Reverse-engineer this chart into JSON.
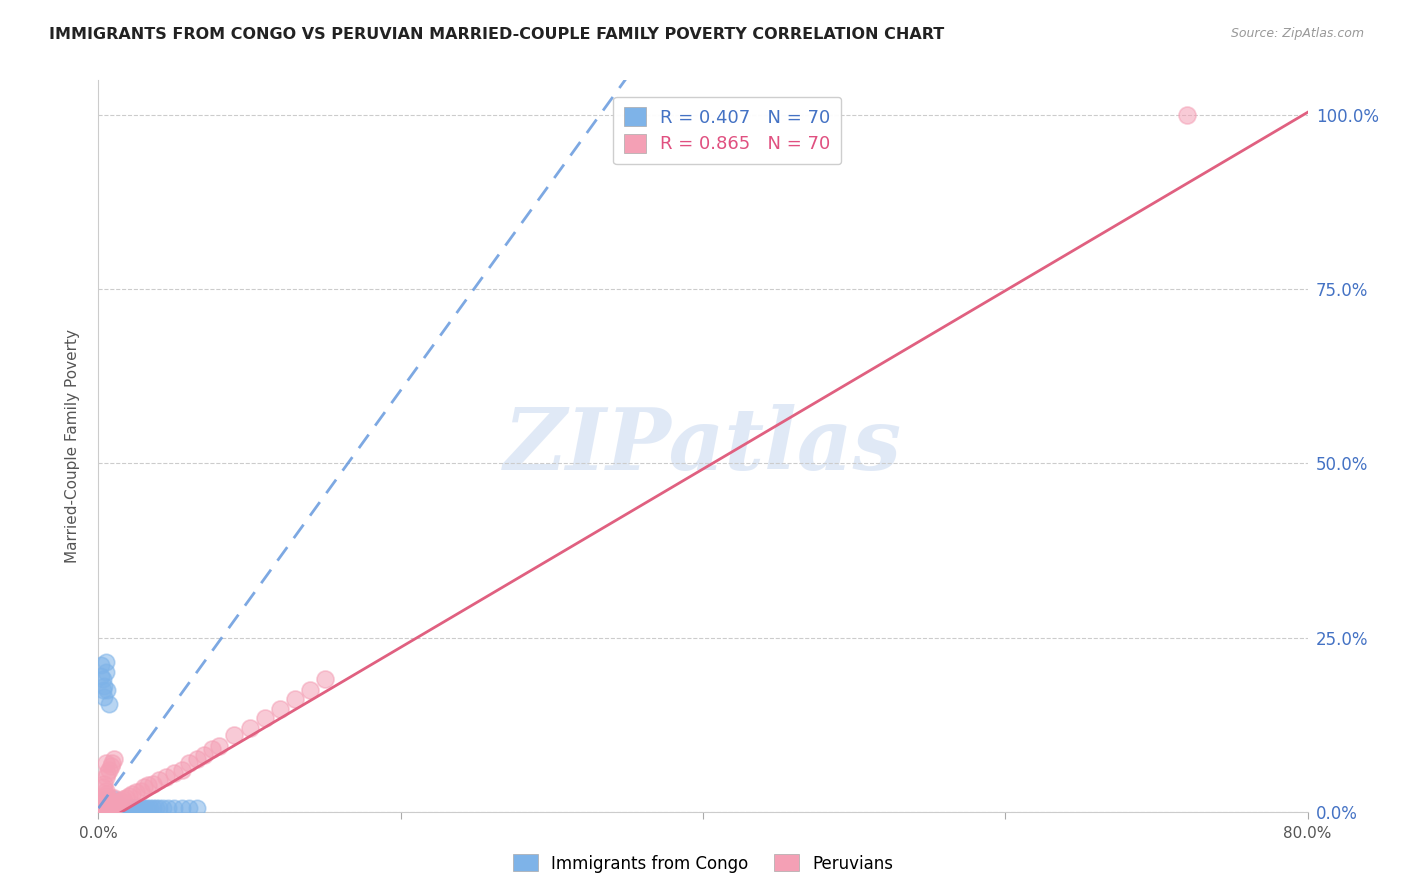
{
  "title": "IMMIGRANTS FROM CONGO VS PERUVIAN MARRIED-COUPLE FAMILY POVERTY CORRELATION CHART",
  "source": "Source: ZipAtlas.com",
  "ylabel": "Married-Couple Family Poverty",
  "xlim": [
    0,
    0.8
  ],
  "ylim": [
    0,
    1.05
  ],
  "xticks": [
    0.0,
    0.2,
    0.4,
    0.6,
    0.8
  ],
  "xtick_labels": [
    "0.0%",
    "",
    "",
    "",
    "80.0%"
  ],
  "ytick_labels": [
    "0.0%",
    "25.0%",
    "50.0%",
    "75.0%",
    "100.0%"
  ],
  "yticks": [
    0.0,
    0.25,
    0.5,
    0.75,
    1.0
  ],
  "legend1_label": "R = 0.407   N = 70",
  "legend2_label": "R = 0.865   N = 70",
  "legend_label1": "Immigrants from Congo",
  "legend_label2": "Peruvians",
  "blue_color": "#7EB3E8",
  "pink_color": "#F4A0B5",
  "blue_line_color": "#6699DD",
  "pink_line_color": "#E06080",
  "blue_line_slope": 3.0,
  "blue_line_intercept": 0.005,
  "pink_line_slope": 1.28,
  "pink_line_intercept": -0.02,
  "watermark": "ZIPatlas",
  "background_color": "#ffffff",
  "grid_color": "#cccccc",
  "blue_scatter_x": [
    0.002,
    0.003,
    0.003,
    0.004,
    0.004,
    0.004,
    0.005,
    0.005,
    0.005,
    0.005,
    0.005,
    0.005,
    0.006,
    0.006,
    0.006,
    0.006,
    0.007,
    0.007,
    0.007,
    0.008,
    0.008,
    0.008,
    0.009,
    0.009,
    0.01,
    0.01,
    0.01,
    0.011,
    0.011,
    0.012,
    0.012,
    0.013,
    0.013,
    0.014,
    0.015,
    0.015,
    0.016,
    0.017,
    0.018,
    0.019,
    0.02,
    0.021,
    0.022,
    0.023,
    0.024,
    0.025,
    0.026,
    0.028,
    0.03,
    0.032,
    0.034,
    0.036,
    0.038,
    0.04,
    0.043,
    0.046,
    0.05,
    0.055,
    0.06,
    0.065,
    0.002,
    0.002,
    0.003,
    0.003,
    0.004,
    0.004,
    0.005,
    0.005,
    0.006,
    0.007
  ],
  "blue_scatter_y": [
    0.005,
    0.008,
    0.01,
    0.005,
    0.008,
    0.012,
    0.005,
    0.008,
    0.01,
    0.012,
    0.015,
    0.018,
    0.005,
    0.008,
    0.012,
    0.016,
    0.005,
    0.01,
    0.015,
    0.005,
    0.01,
    0.015,
    0.005,
    0.012,
    0.005,
    0.01,
    0.018,
    0.005,
    0.012,
    0.005,
    0.01,
    0.005,
    0.01,
    0.005,
    0.005,
    0.008,
    0.005,
    0.005,
    0.005,
    0.005,
    0.005,
    0.005,
    0.005,
    0.005,
    0.005,
    0.005,
    0.005,
    0.005,
    0.005,
    0.005,
    0.005,
    0.005,
    0.005,
    0.005,
    0.005,
    0.005,
    0.005,
    0.005,
    0.005,
    0.005,
    0.195,
    0.21,
    0.175,
    0.19,
    0.165,
    0.18,
    0.2,
    0.215,
    0.175,
    0.155
  ],
  "pink_scatter_x": [
    0.002,
    0.002,
    0.003,
    0.003,
    0.003,
    0.004,
    0.004,
    0.004,
    0.004,
    0.005,
    0.005,
    0.005,
    0.005,
    0.005,
    0.005,
    0.005,
    0.005,
    0.006,
    0.006,
    0.006,
    0.007,
    0.007,
    0.007,
    0.008,
    0.008,
    0.009,
    0.009,
    0.01,
    0.01,
    0.01,
    0.011,
    0.012,
    0.013,
    0.014,
    0.015,
    0.016,
    0.018,
    0.02,
    0.022,
    0.025,
    0.028,
    0.03,
    0.033,
    0.036,
    0.04,
    0.045,
    0.05,
    0.055,
    0.06,
    0.065,
    0.07,
    0.075,
    0.08,
    0.09,
    0.1,
    0.11,
    0.12,
    0.13,
    0.14,
    0.15,
    0.003,
    0.004,
    0.005,
    0.006,
    0.007,
    0.008,
    0.009,
    0.01,
    0.72,
    0.005
  ],
  "pink_scatter_y": [
    0.002,
    0.005,
    0.003,
    0.006,
    0.01,
    0.004,
    0.008,
    0.012,
    0.016,
    0.003,
    0.006,
    0.01,
    0.014,
    0.018,
    0.022,
    0.026,
    0.03,
    0.005,
    0.01,
    0.016,
    0.005,
    0.012,
    0.018,
    0.005,
    0.014,
    0.005,
    0.014,
    0.005,
    0.012,
    0.02,
    0.01,
    0.012,
    0.014,
    0.015,
    0.016,
    0.018,
    0.02,
    0.022,
    0.025,
    0.028,
    0.03,
    0.035,
    0.038,
    0.04,
    0.045,
    0.05,
    0.055,
    0.06,
    0.07,
    0.075,
    0.082,
    0.09,
    0.095,
    0.11,
    0.12,
    0.135,
    0.148,
    0.162,
    0.175,
    0.19,
    0.035,
    0.04,
    0.05,
    0.055,
    0.06,
    0.065,
    0.07,
    0.075,
    1.0,
    0.07
  ]
}
